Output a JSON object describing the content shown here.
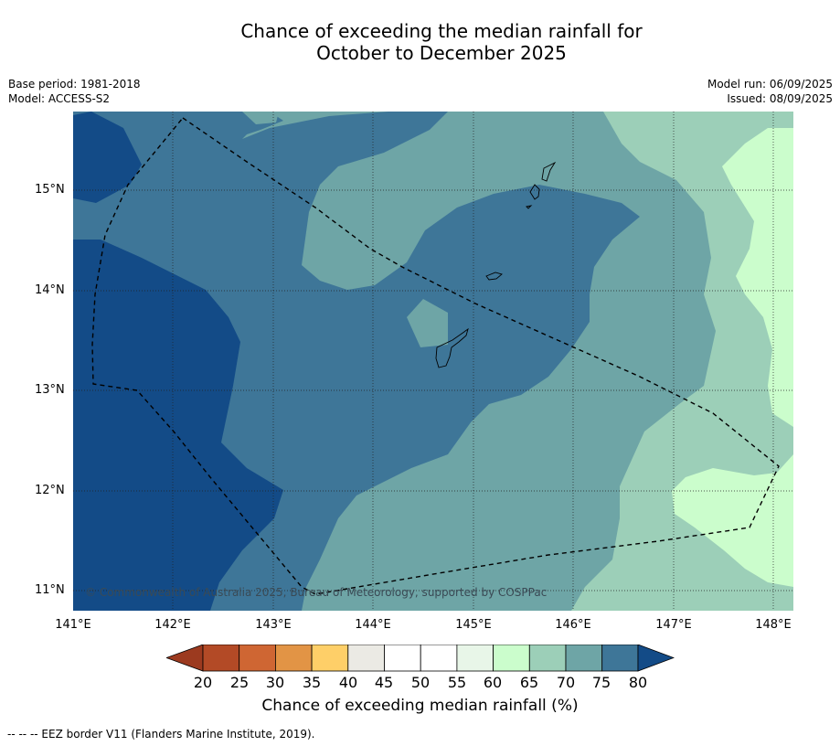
{
  "title_line1": "Chance of exceeding the median rainfall for",
  "title_line2": "October to December 2025",
  "base_period": "Base period: 1981-2018",
  "model": "Model: ACCESS-S2",
  "model_run": "Model run: 06/09/2025",
  "issued": "Issued: 08/09/2025",
  "copyright": "© Commonwealth of Australia 2025, Bureau of Meteorology, supported by COSPPac",
  "lat_labels": [
    "15°N",
    "14°N",
    "13°N",
    "12°N",
    "11°N"
  ],
  "lon_labels": [
    "141°E",
    "142°E",
    "143°E",
    "144°E",
    "145°E",
    "146°E",
    "147°E",
    "148°E"
  ],
  "colorbar": {
    "ticks": [
      "20",
      "25",
      "30",
      "35",
      "40",
      "45",
      "50",
      "55",
      "60",
      "65",
      "70",
      "75",
      "80"
    ],
    "title": "Chance of exceeding median rainfall (%)",
    "colors": {
      "below20": "#9c3a1f",
      "c20_25": "#b34a26",
      "c25_30": "#cf6633",
      "c30_35": "#e29445",
      "c35_40": "#fecf68",
      "c40_45": "#ebeae4",
      "c45_50": "#ffffff",
      "c50_55": "#ffffff",
      "c55_60": "#e8f6e8",
      "c60_65": "#cbfdcc",
      "c65_70": "#9ccfb8",
      "c70_75": "#6ea5a6",
      "c75_80": "#3e7698",
      "above80": "#134b87"
    }
  },
  "footer": "--  --  -- EEZ border V11 (Flanders Marine Institute, 2019)."
}
